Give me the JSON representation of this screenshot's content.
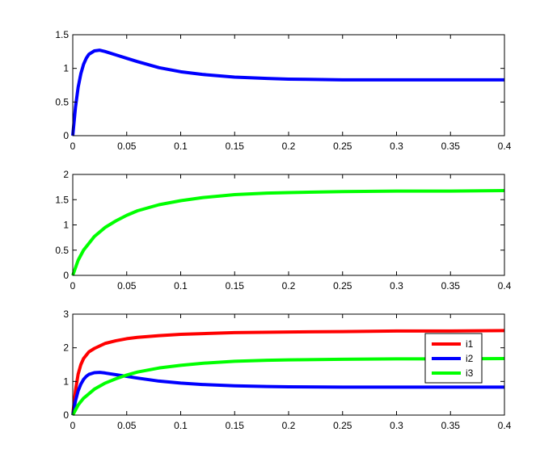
{
  "chart_data": [
    {
      "type": "line",
      "xlim": [
        0,
        0.4
      ],
      "ylim": [
        0,
        1.5
      ],
      "xticks": [
        "0",
        "0.05",
        "0.1",
        "0.15",
        "0.2",
        "0.25",
        "0.3",
        "0.35",
        "0.4"
      ],
      "yticks": [
        "0",
        "0.5",
        "1",
        "1.5"
      ],
      "grid": false,
      "series": [
        {
          "color": "#0000ff",
          "x": [
            0,
            0.0025,
            0.005,
            0.0075,
            0.01,
            0.0125,
            0.015,
            0.02,
            0.025,
            0.03,
            0.04,
            0.05,
            0.06,
            0.08,
            0.1,
            0.12,
            0.15,
            0.18,
            0.2,
            0.25,
            0.3,
            0.35,
            0.4
          ],
          "y": [
            0,
            0.42,
            0.72,
            0.92,
            1.06,
            1.15,
            1.21,
            1.26,
            1.27,
            1.25,
            1.2,
            1.15,
            1.1,
            1.01,
            0.95,
            0.91,
            0.87,
            0.85,
            0.84,
            0.83,
            0.83,
            0.83,
            0.83
          ]
        }
      ]
    },
    {
      "type": "line",
      "xlim": [
        0,
        0.4
      ],
      "ylim": [
        0,
        2
      ],
      "xticks": [
        "0",
        "0.05",
        "0.1",
        "0.15",
        "0.2",
        "0.25",
        "0.3",
        "0.35",
        "0.4"
      ],
      "yticks": [
        "0",
        "0.5",
        "1",
        "1.5",
        "2"
      ],
      "grid": false,
      "series": [
        {
          "color": "#00ff00",
          "x": [
            0,
            0.005,
            0.01,
            0.02,
            0.03,
            0.04,
            0.05,
            0.06,
            0.08,
            0.1,
            0.12,
            0.15,
            0.18,
            0.2,
            0.25,
            0.3,
            0.35,
            0.4
          ],
          "y": [
            0,
            0.3,
            0.5,
            0.77,
            0.95,
            1.08,
            1.19,
            1.28,
            1.4,
            1.48,
            1.54,
            1.6,
            1.63,
            1.64,
            1.66,
            1.67,
            1.67,
            1.68
          ]
        }
      ]
    },
    {
      "type": "line",
      "xlim": [
        0,
        0.4
      ],
      "ylim": [
        0,
        3
      ],
      "xticks": [
        "0",
        "0.05",
        "0.1",
        "0.15",
        "0.2",
        "0.25",
        "0.3",
        "0.35",
        "0.4"
      ],
      "yticks": [
        "0",
        "1",
        "2",
        "3"
      ],
      "grid": false,
      "legend": "upper-right",
      "series": [
        {
          "name": "i1",
          "color": "#ff0000",
          "x": [
            0,
            0.0025,
            0.005,
            0.0075,
            0.01,
            0.015,
            0.02,
            0.03,
            0.04,
            0.05,
            0.06,
            0.08,
            0.1,
            0.15,
            0.2,
            0.25,
            0.3,
            0.35,
            0.4
          ],
          "y": [
            0,
            0.72,
            1.22,
            1.5,
            1.68,
            1.88,
            1.98,
            2.13,
            2.21,
            2.27,
            2.31,
            2.36,
            2.4,
            2.45,
            2.47,
            2.48,
            2.5,
            2.5,
            2.51
          ]
        },
        {
          "name": "i2",
          "color": "#0000ff",
          "x": [
            0,
            0.0025,
            0.005,
            0.0075,
            0.01,
            0.0125,
            0.015,
            0.02,
            0.025,
            0.03,
            0.04,
            0.05,
            0.06,
            0.08,
            0.1,
            0.12,
            0.15,
            0.18,
            0.2,
            0.25,
            0.3,
            0.35,
            0.4
          ],
          "y": [
            0,
            0.42,
            0.72,
            0.92,
            1.06,
            1.15,
            1.21,
            1.26,
            1.27,
            1.25,
            1.2,
            1.15,
            1.1,
            1.01,
            0.95,
            0.91,
            0.87,
            0.85,
            0.84,
            0.83,
            0.83,
            0.83,
            0.83
          ]
        },
        {
          "name": "i3",
          "color": "#00ff00",
          "x": [
            0,
            0.005,
            0.01,
            0.02,
            0.03,
            0.04,
            0.05,
            0.06,
            0.08,
            0.1,
            0.12,
            0.15,
            0.18,
            0.2,
            0.25,
            0.3,
            0.35,
            0.4
          ],
          "y": [
            0,
            0.3,
            0.5,
            0.77,
            0.95,
            1.08,
            1.19,
            1.28,
            1.4,
            1.48,
            1.54,
            1.6,
            1.63,
            1.64,
            1.66,
            1.67,
            1.67,
            1.68
          ]
        }
      ]
    }
  ]
}
